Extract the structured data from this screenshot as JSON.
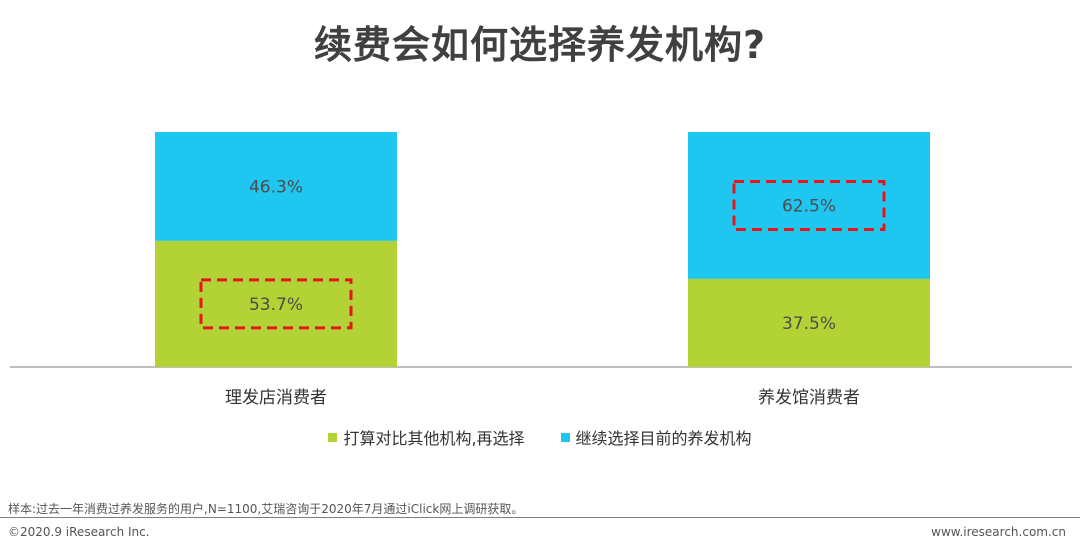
{
  "title": "续费会如何选择养发机构?",
  "chart_data": {
    "type": "bar",
    "stacked": true,
    "percent": true,
    "categories": [
      "理发店消费者",
      "养发馆消费者"
    ],
    "series": [
      {
        "name": "打算对比其他机构,再选择",
        "values": [
          53.7,
          37.5
        ],
        "labels": [
          "53.7%",
          "37.5%"
        ],
        "color": "#b2d235"
      },
      {
        "name": "继续选择目前的养发机构",
        "values": [
          46.3,
          62.5
        ],
        "labels": [
          "46.3%",
          "62.5%"
        ],
        "color": "#1fc6f0"
      }
    ],
    "highlighted": [
      {
        "category": 0,
        "series": 0
      },
      {
        "category": 1,
        "series": 1
      }
    ],
    "ylim": [
      0,
      100
    ],
    "legend_position": "bottom"
  },
  "footnote": "样本:过去一年消费过养发服务的用户,N=1100,艾瑞咨询于2020年7月通过iClick网上调研获取。",
  "copyright": "©2020.9 iResearch Inc.",
  "website": "www.iresearch.com.cn"
}
